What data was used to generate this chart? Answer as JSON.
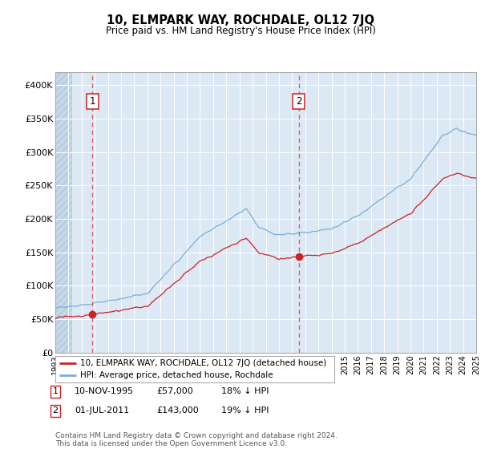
{
  "title": "10, ELMPARK WAY, ROCHDALE, OL12 7JQ",
  "subtitle": "Price paid vs. HM Land Registry's House Price Index (HPI)",
  "sale1_price": 57000,
  "sale2_price": 143000,
  "legend_line1": "10, ELMPARK WAY, ROCHDALE, OL12 7JQ (detached house)",
  "legend_line2": "HPI: Average price, detached house, Rochdale",
  "sale1_note_col1": "10-NOV-1995",
  "sale1_note_col2": "£57,000",
  "sale1_note_col3": "18% ↓ HPI",
  "sale2_note_col1": "01-JUL-2011",
  "sale2_note_col2": "£143,000",
  "sale2_note_col3": "19% ↓ HPI",
  "footer": "Contains HM Land Registry data © Crown copyright and database right 2024.\nThis data is licensed under the Open Government Licence v3.0.",
  "hpi_color": "#7aaed6",
  "price_color": "#cc2222",
  "bg_color": "#dce9f5",
  "grid_color": "#ffffff",
  "dashed_line_color": "#e06060",
  "ylim": [
    0,
    420000
  ],
  "yticks": [
    0,
    50000,
    100000,
    150000,
    200000,
    250000,
    300000,
    350000,
    400000
  ],
  "ytick_labels": [
    "£0",
    "£50K",
    "£100K",
    "£150K",
    "£200K",
    "£250K",
    "£300K",
    "£350K",
    "£400K"
  ],
  "xstart_year": 1993,
  "xend_year": 2025
}
